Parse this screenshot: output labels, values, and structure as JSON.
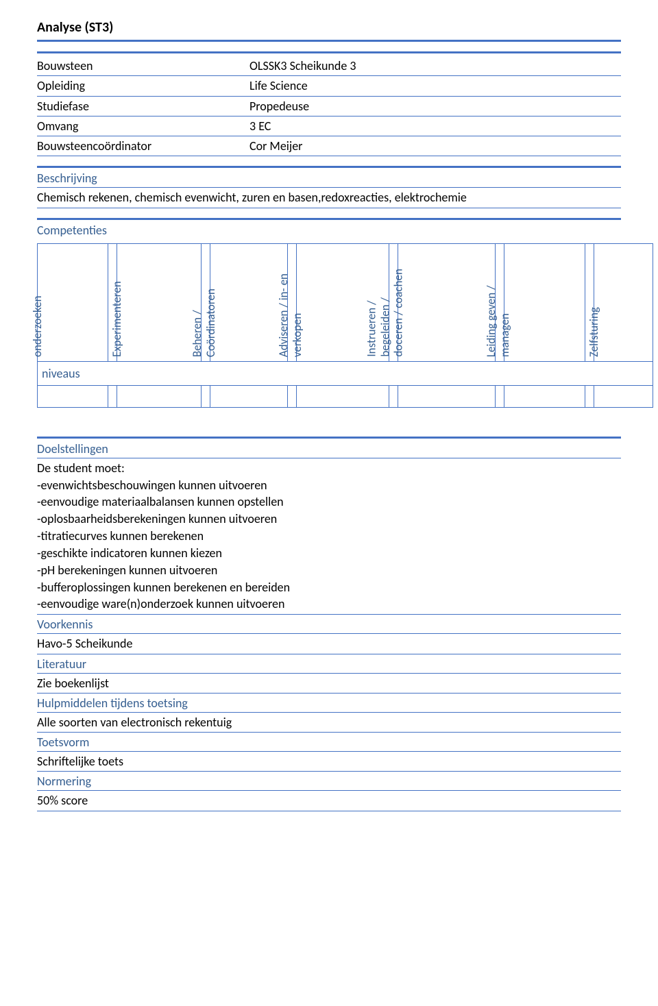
{
  "title": "Analyse (ST3)",
  "accent_color": "#4472c4",
  "heading_color": "#365f91",
  "info": {
    "rows": [
      {
        "label": "Bouwsteen",
        "value": "OLSSK3 Scheikunde 3"
      },
      {
        "label": "Opleiding",
        "value": "Life Science"
      },
      {
        "label": "Studiefase",
        "value": "Propedeuse"
      },
      {
        "label": "Omvang",
        "value": "3 EC"
      },
      {
        "label": "Bouwsteencoördinator",
        "value": "Cor Meijer"
      }
    ]
  },
  "beschrijving": {
    "heading": "Beschrijving",
    "text": "Chemisch rekenen, chemisch evenwicht, zuren en basen,redoxreacties, elektrochemie"
  },
  "competenties": {
    "heading": "Competenties",
    "headers": [
      "onderzoeken",
      "Experimenteren",
      "Beheren / Coördinatoren",
      "Adviseren / in- en verkopen",
      "Instrueren / begeleiden / doceren / coachen",
      "Leiding geven / managen",
      "Zelfsturing"
    ],
    "niveaus_label": "niveaus"
  },
  "doelstellingen": {
    "heading": "Doelstellingen",
    "intro": "De student moet:",
    "items": [
      "-evenwichtsbeschouwingen kunnen uitvoeren",
      "-eenvoudige materiaalbalansen kunnen opstellen",
      "-oplosbaarheidsberekeningen kunnen uitvoeren",
      "-titratiecurves kunnen berekenen",
      "-geschikte indicatoren kunnen kiezen",
      "-pH berekeningen kunnen uitvoeren",
      "-bufferoplossingen kunnen berekenen en bereiden",
      "-eenvoudige ware(n)onderzoek kunnen uitvoeren"
    ]
  },
  "voorkennis": {
    "heading": "Voorkennis",
    "text": "Havo-5 Scheikunde"
  },
  "literatuur": {
    "heading": "Literatuur",
    "text": "Zie boekenlijst"
  },
  "hulpmiddelen": {
    "heading": "Hulpmiddelen tijdens toetsing",
    "text": "Alle soorten van electronisch rekentuig"
  },
  "toetsvorm": {
    "heading": "Toetsvorm",
    "text": "Schriftelijke toets"
  },
  "normering": {
    "heading": "Normering",
    "text": "50% score"
  }
}
